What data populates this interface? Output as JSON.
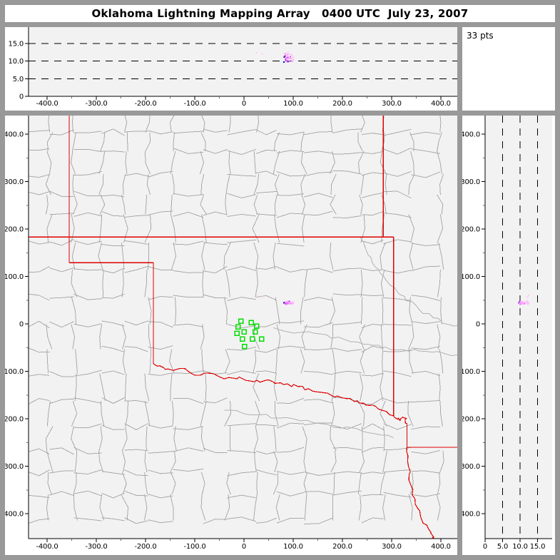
{
  "title": "Oklahoma Lightning Mapping Array   0400 UTC  July 23, 2007",
  "points_count_label": "33 pts",
  "colors": {
    "frame": "#999999",
    "panel_bg": "#ffffff",
    "plot_bg": "#f2f2f2",
    "axis": "#000000",
    "minor_tick": "#666666",
    "county_line": "#a9a9a9",
    "river_line": "#b2b2b2",
    "state_line": "#dd0000",
    "station": "#00dd00",
    "label_text": "#000000",
    "point_palette": {
      "blue": "#0000ee",
      "navy": "#330099",
      "purple": "#7a00cc",
      "violet": "#aa33ee",
      "magenta": "#d966ff",
      "pink": "#ff9cff",
      "pale": "#ffc8f8"
    }
  },
  "chart_data": {
    "type": "scatter",
    "title": "Oklahoma Lightning Mapping Array   0400 UTC  July 23, 2007",
    "point_count": 33,
    "top_panel": {
      "x_axis": {
        "tick_values": [
          -400,
          -300,
          -200,
          -100,
          0,
          100,
          200,
          300,
          400
        ],
        "tick_labels": [
          "-400.0",
          "-300.0",
          "-200.0",
          "-100.0",
          "0",
          "100.0",
          "200.0",
          "300.0",
          "400.0"
        ],
        "minor_step": 50,
        "range": [
          -437,
          433
        ]
      },
      "y_axis": {
        "tick_values": [
          0,
          5,
          10,
          15
        ],
        "tick_labels": [
          "0",
          "5.0",
          "10.0",
          "15.0"
        ],
        "dashed_gridlines": [
          5,
          10,
          15
        ],
        "range": [
          0,
          19.7
        ]
      }
    },
    "map_panel": {
      "x_axis": {
        "tick_values": [
          -400,
          -300,
          -200,
          -100,
          0,
          100,
          200,
          300,
          400
        ],
        "tick_labels": [
          "-400.0",
          "-300.0",
          "-200.0",
          "-100.0",
          "0",
          "100.0",
          "200.0",
          "300.0",
          "400.0"
        ],
        "minor_step": 50,
        "range": [
          -437,
          433
        ]
      },
      "y_axis": {
        "tick_values": [
          400,
          300,
          200,
          100,
          0,
          -100,
          -200,
          -300,
          -400
        ],
        "tick_labels": [
          "400.0",
          "300.0",
          "200.0",
          "100.0",
          "0",
          "-100.0",
          "-200.0",
          "-300.0",
          "-400.0"
        ],
        "minor_step": 50,
        "range": [
          -453,
          439
        ]
      }
    },
    "ns_panel": {
      "x_axis": {
        "tick_values": [
          0,
          5,
          10,
          15
        ],
        "tick_labels": [
          "0",
          "5.0",
          "10.0",
          "15.0"
        ],
        "dashed_gridlines": [
          5,
          10,
          15
        ],
        "range": [
          0,
          19.2
        ]
      },
      "y_axis": {
        "tick_values": [
          400,
          300,
          200,
          100,
          0,
          -100,
          -200,
          -300,
          -400
        ],
        "tick_labels": [
          "400.0",
          "300.0",
          "200.0",
          "100.0",
          "0",
          "-100.0",
          "-200.0",
          "-300.0",
          "-400.0"
        ],
        "minor_step": 50,
        "range": [
          -453,
          439
        ]
      }
    },
    "vhf_points": [
      [
        25,
        60,
        12.4,
        "pale"
      ],
      [
        37,
        57,
        12.1,
        "pale"
      ],
      [
        81,
        44,
        9.7,
        "blue"
      ],
      [
        82,
        44,
        11.2,
        "navy"
      ],
      [
        83,
        45,
        11.5,
        "purple"
      ],
      [
        83,
        42,
        12.2,
        "pink"
      ],
      [
        84,
        44,
        10.6,
        "magenta"
      ],
      [
        85,
        46,
        11.8,
        "pink"
      ],
      [
        85,
        43,
        10.2,
        "violet"
      ],
      [
        86,
        45,
        12.3,
        "pale"
      ],
      [
        86,
        41,
        10.0,
        "magenta"
      ],
      [
        87,
        44,
        11.0,
        "magenta"
      ],
      [
        87,
        47,
        10.5,
        "pale"
      ],
      [
        88,
        42,
        10.4,
        "pink"
      ],
      [
        88,
        46,
        11.5,
        "pink"
      ],
      [
        89,
        44,
        9.8,
        "violet"
      ],
      [
        89,
        47,
        12.0,
        "pink"
      ],
      [
        90,
        45,
        12.6,
        "pale"
      ],
      [
        90,
        43,
        11.1,
        "magenta"
      ],
      [
        91,
        46,
        10.8,
        "pink"
      ],
      [
        92,
        44,
        11.9,
        "pale"
      ],
      [
        92,
        47,
        9.9,
        "violet"
      ],
      [
        93,
        45,
        10.1,
        "pink"
      ],
      [
        94,
        43,
        11.3,
        "magenta"
      ],
      [
        95,
        46,
        12.1,
        "pale"
      ],
      [
        95,
        42,
        10.9,
        "pink"
      ],
      [
        96,
        44,
        10.7,
        "pink"
      ],
      [
        97,
        45,
        11.6,
        "pale"
      ],
      [
        98,
        43,
        9.9,
        "pink"
      ],
      [
        98,
        46,
        11.7,
        "pale"
      ],
      [
        99,
        45,
        11.0,
        "pale"
      ],
      [
        100,
        44,
        10.3,
        "pink"
      ],
      [
        101,
        46,
        11.2,
        "pale"
      ]
    ],
    "stations": [
      [
        -6,
        6
      ],
      [
        15,
        3
      ],
      [
        26,
        -5
      ],
      [
        -12,
        -6
      ],
      [
        -14,
        -20
      ],
      [
        0,
        -17
      ],
      [
        23,
        -17
      ],
      [
        -3,
        -32
      ],
      [
        17,
        -32
      ],
      [
        36,
        -32
      ],
      [
        1,
        -48
      ]
    ],
    "basemap": {
      "state_borders_straight": [
        [
          [
            -437,
            183
          ],
          [
            304,
            183
          ]
        ],
        [
          [
            283,
            439
          ],
          [
            283,
            183
          ]
        ],
        [
          [
            -355,
            439
          ],
          [
            -355,
            129
          ]
        ],
        [
          [
            -355,
            129
          ],
          [
            -184,
            129
          ]
        ],
        [
          [
            -184,
            129
          ],
          [
            -184,
            -84
          ]
        ],
        [
          [
            304,
            183
          ],
          [
            304,
            -194
          ]
        ],
        [
          [
            331,
            -210
          ],
          [
            331,
            -260
          ]
        ],
        [
          [
            331,
            -260
          ],
          [
            433,
            -260
          ]
        ]
      ],
      "state_borders_wiggly": [
        [
          [
            -184,
            -84
          ],
          [
            -160,
            -96
          ],
          [
            -130,
            -94
          ],
          [
            -100,
            -108
          ],
          [
            -70,
            -104
          ],
          [
            -40,
            -116
          ],
          [
            -10,
            -112
          ],
          [
            20,
            -122
          ],
          [
            50,
            -118
          ],
          [
            80,
            -128
          ],
          [
            110,
            -132
          ],
          [
            140,
            -142
          ],
          [
            170,
            -146
          ],
          [
            200,
            -156
          ],
          [
            230,
            -162
          ],
          [
            255,
            -172
          ],
          [
            280,
            -182
          ],
          [
            304,
            -194
          ]
        ],
        [
          [
            304,
            -194
          ],
          [
            316,
            -202
          ],
          [
            326,
            -198
          ],
          [
            331,
            -210
          ]
        ],
        [
          [
            331,
            -260
          ],
          [
            334,
            -300
          ],
          [
            339,
            -340
          ],
          [
            348,
            -380
          ],
          [
            362,
            -415
          ],
          [
            380,
            -440
          ],
          [
            388,
            -455
          ]
        ]
      ],
      "rivers": [
        [
          [
            60,
            -8
          ],
          [
            110,
            -18
          ],
          [
            160,
            -22
          ],
          [
            210,
            -35
          ],
          [
            260,
            -45
          ],
          [
            310,
            -55
          ],
          [
            370,
            -58
          ],
          [
            433,
            -65
          ]
        ],
        [
          [
            236,
            183
          ],
          [
            258,
            140
          ],
          [
            284,
            100
          ],
          [
            316,
            62
          ],
          [
            356,
            30
          ],
          [
            400,
            6
          ],
          [
            433,
            -4
          ]
        ],
        [
          [
            -40,
            -182
          ],
          [
            30,
            -192
          ],
          [
            100,
            -200
          ],
          [
            170,
            -212
          ],
          [
            240,
            -226
          ],
          [
            304,
            -240
          ]
        ]
      ],
      "county_grid": {
        "seed": 20070723,
        "min_step": 27,
        "rand_step": 16,
        "jitter": 5,
        "draw_prob": 0.85
      }
    }
  }
}
